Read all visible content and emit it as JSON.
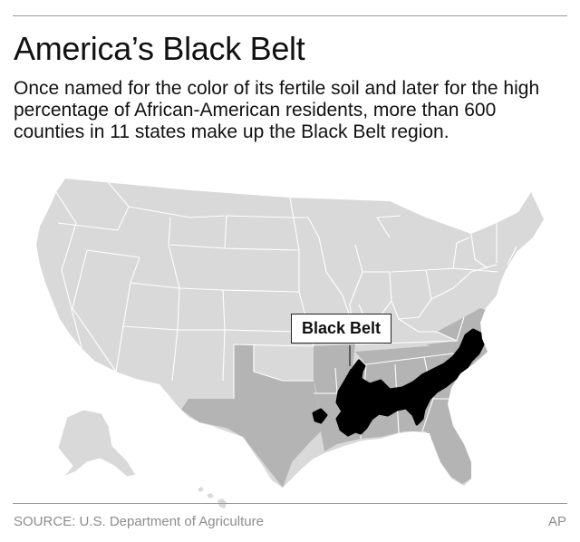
{
  "header": {
    "title": "America’s Black Belt",
    "subtitle": "Once named for the color of its fertile soil and later for the high percentage of African-American residents, more than 600 counties in 11 states make up the Black Belt region."
  },
  "map": {
    "callout_label": "Black Belt",
    "colors": {
      "other_states": "#d9d9d9",
      "black_belt_states": "#b4b4b4",
      "black_belt_region": "#000000",
      "state_borders": "#ffffff"
    },
    "black_belt_state_count": 11
  },
  "footer": {
    "source": "SOURCE: U.S. Department of Agriculture",
    "credit": "AP"
  }
}
